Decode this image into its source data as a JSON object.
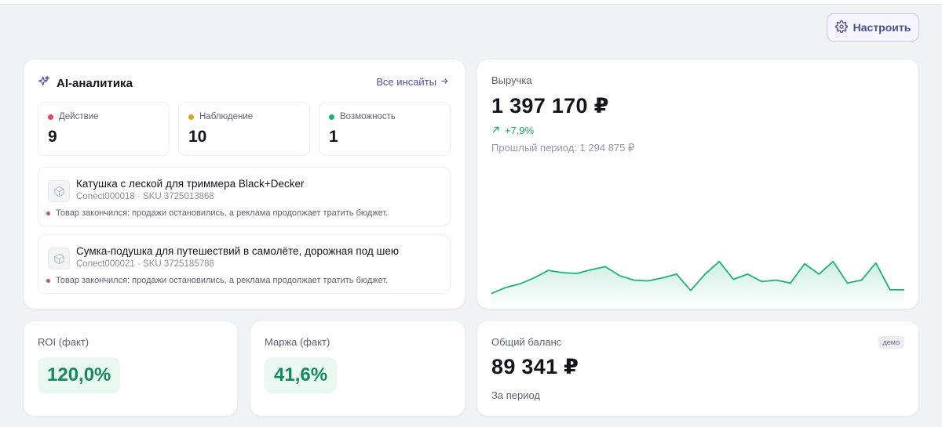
{
  "toolbar": {
    "customize_label": "Настроить"
  },
  "ai": {
    "title": "AI-аналитика",
    "all_insights": "Все инсайты",
    "stats": [
      {
        "label": "Действие",
        "value": "9",
        "color": "#e0475a"
      },
      {
        "label": "Наблюдение",
        "value": "10",
        "color": "#e0a21a"
      },
      {
        "label": "Возможность",
        "value": "1",
        "color": "#1bb37a"
      }
    ],
    "insights": [
      {
        "title": "Катушка с леской для триммера Black+Decker",
        "sub": "Conect000018 · SKU 3725013868",
        "message": "Товар закончился: продажи остановились, а реклама продолжает тратить бюджет."
      },
      {
        "title": "Сумка-подушка для путешествий в самолёте, дорожная под шею",
        "sub": "Conect000021 · SKU 3725185788",
        "message": "Товар закончился: продажи остановились, а реклама продолжает тратить бюджет."
      }
    ]
  },
  "revenue": {
    "label": "Выручка",
    "value": "1 397 170 ₽",
    "growth": "+7,9%",
    "previous": "Прошлый период: 1 294 875 ₽",
    "line_color": "#1bb37a",
    "trend": [
      12,
      20,
      25,
      33,
      43,
      40,
      39,
      44,
      48,
      36,
      30,
      29,
      33,
      38,
      16,
      38,
      55,
      31,
      38,
      28,
      30,
      26,
      52,
      38,
      55,
      26,
      30,
      53,
      17,
      17
    ]
  },
  "roi": {
    "label": "ROI (факт)",
    "value": "120,0%"
  },
  "margin": {
    "label": "Маржа (факт)",
    "value": "41,6%"
  },
  "balance": {
    "label": "Общий баланс",
    "badge": "демо",
    "value": "89 341 ₽",
    "period": "За период"
  }
}
